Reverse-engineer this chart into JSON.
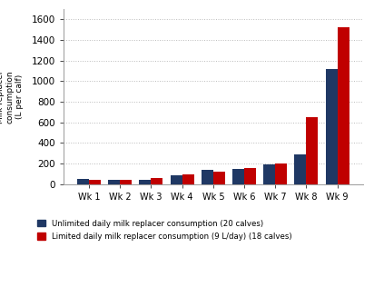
{
  "categories": [
    "Wk 1",
    "Wk 2",
    "Wk 3",
    "Wk 4",
    "Wk 5",
    "Wk 6",
    "Wk 7",
    "Wk 8",
    "Wk 9"
  ],
  "unlimited": [
    50,
    42,
    42,
    90,
    138,
    150,
    190,
    285,
    1120
  ],
  "limited": [
    45,
    42,
    58,
    95,
    120,
    152,
    200,
    650,
    1520
  ],
  "color_unlimited": "#1F3864",
  "color_limited": "#C00000",
  "ylim": [
    0,
    1700
  ],
  "yticks": [
    0,
    200,
    400,
    600,
    800,
    1000,
    1200,
    1400,
    1600
  ],
  "legend_unlimited": "Unlimited daily milk replacer consumption (20 calves)",
  "legend_limited": "Limited daily milk replacer consumption (9 L/day) (18 calves)",
  "background_color": "#FFFFFF",
  "grid_color": "#BBBBBB",
  "ylabel_chars": [
    "—",
    "M",
    "i",
    "l",
    "k",
    " ",
    "r",
    "e",
    "p",
    "l",
    "a",
    "c",
    "e",
    "r",
    " ",
    "c",
    "o",
    "n",
    "s",
    "u",
    "m",
    "p",
    "t",
    "i",
    "o",
    "n",
    " ",
    "(",
    "L",
    " ",
    "p",
    "e",
    "r",
    " ",
    "c",
    "a",
    "l",
    "f",
    ")"
  ]
}
